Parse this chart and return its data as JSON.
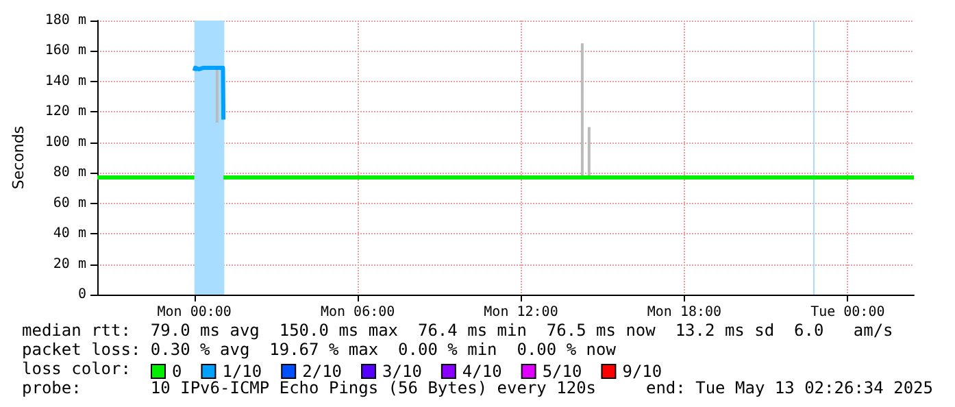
{
  "chart_data": {
    "type": "line",
    "ylabel": "Seconds",
    "legend_title": "loss color:",
    "legend": "bottom",
    "grid": true,
    "marker": "none",
    "xlim": [
      "2025-05-11T20:26",
      "2025-05-13T02:26"
    ],
    "xticks": [
      {
        "value": "2025-05-12T00:00",
        "label": "Mon 00:00"
      },
      {
        "value": "2025-05-12T06:00",
        "label": "Mon 06:00"
      },
      {
        "value": "2025-05-12T12:00",
        "label": "Mon 12:00"
      },
      {
        "value": "2025-05-12T18:00",
        "label": "Mon 18:00"
      },
      {
        "value": "2025-05-13T00:00",
        "label": "Tue 00:00"
      }
    ],
    "ylim": [
      0,
      180
    ],
    "yticks": [
      0,
      {
        "value": 20,
        "label": "20 m"
      },
      {
        "value": 40,
        "label": "40 m"
      },
      {
        "value": 60,
        "label": "60 m"
      },
      {
        "value": 80,
        "label": "80 m"
      },
      {
        "value": 100,
        "label": "100 m"
      },
      {
        "value": 120,
        "label": "120 m"
      },
      {
        "value": 140,
        "label": "140 m"
      },
      {
        "value": 160,
        "label": "160 m"
      },
      {
        "value": 180,
        "label": "180 m"
      }
    ],
    "series": [
      {
        "color": "#bbbbbb",
        "x": [
          "2025-05-12T00:50",
          "2025-05-12T00:50",
          "2025-05-12T00:52",
          "2025-05-12T14:15",
          "2025-05-12T14:15",
          "2025-05-12T14:18",
          "2025-05-12T14:30",
          "2025-05-12T14:30"
        ],
        "values": [
          148,
          113,
          null,
          77,
          165,
          null,
          77,
          110
        ]
      },
      {
        "name": "0",
        "color": "#00ee00",
        "x": [
          "2025-05-11T20:26",
          "2025-05-12T00:00",
          "2025-05-12T00:02",
          "2025-05-12T01:04",
          "2025-05-13T02:26"
        ],
        "values": [
          77,
          77,
          null,
          77,
          77
        ]
      },
      {
        "name": "1/10",
        "color": "#00a0ff",
        "x": [
          "2025-05-12T00:00",
          "2025-05-12T00:02",
          "2025-05-12T00:10",
          "2025-05-12T00:20",
          "2025-05-12T00:30",
          "2025-05-12T00:40",
          "2025-05-12T00:50",
          "2025-05-12T01:03",
          "2025-05-12T01:04"
        ],
        "values": [
          147,
          149,
          148,
          149,
          149,
          149,
          149,
          149,
          115
        ]
      },
      {
        "name": "2/10",
        "color": "#0050ff"
      },
      {
        "name": "3/10",
        "color": "#5500ff"
      },
      {
        "name": "4/10",
        "color": "#8a00ff"
      },
      {
        "name": "5/10",
        "color": "#e000ff"
      },
      {
        "name": "9/10",
        "color": "#ff0000"
      }
    ],
    "bands": [
      {
        "axis": "x",
        "from": "2025-05-12T00:00",
        "to": "2025-05-12T01:06",
        "color": "#a8ddff"
      },
      {
        "axis": "x",
        "from": "2025-05-12T22:44",
        "to": "2025-05-12T22:47",
        "color": "#a8ddff"
      }
    ],
    "annotations": [
      "median rtt:  79.0 ms avg  150.0 ms max  76.4 ms min  76.5 ms now  13.2 ms sd  6.0   am/s",
      "packet loss: 0.30 % avg  19.67 % max  0.00 % min  0.00 % now",
      "probe:       10 IPv6-ICMP Echo Pings (56 Bytes) every 120s",
      "end: Tue May 13 02:26:34 2025"
    ]
  }
}
